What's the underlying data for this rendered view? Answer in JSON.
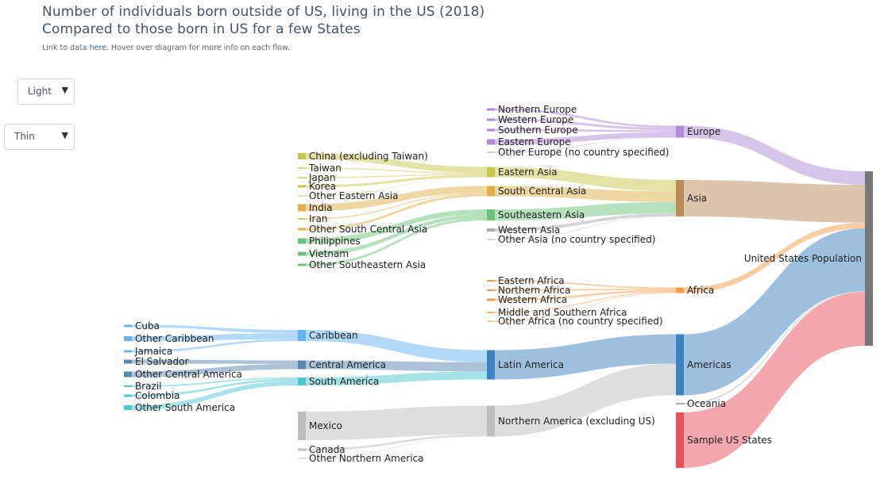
{
  "header": {
    "title_line1": "Number of individuals born outside of US, living in the US (2018)",
    "title_line2": "Compared to those born in US for a few States",
    "note_prefix": "Link to data ",
    "note_link": "here",
    "note_suffix": ". Hover over diagram for more info on each flow."
  },
  "controls": {
    "theme_select": {
      "value": "Light"
    },
    "width_select": {
      "value": "Thin"
    }
  },
  "colors": {
    "europe": "#b08ad6",
    "eastern_asia": "#c9c84e",
    "south_central_asia": "#e0b04a",
    "southeastern_asia": "#6cc47a",
    "western_asia": "#aaaaaa",
    "asia": "#b98c5a",
    "africa": "#f59b45",
    "caribbean": "#67b3f2",
    "central_america": "#5a86b2",
    "south_america": "#4bc8d2",
    "latin_america": "#3b82c0",
    "northern_america": "#bdbdbd",
    "us_states": "#e8505b",
    "us_population": "#777777"
  },
  "nodes": [
    {
      "id": "cuba",
      "label": "Cuba",
      "color": "#67b3f2"
    },
    {
      "id": "other_caribbean",
      "label": "Other Caribbean",
      "color": "#67b3f2"
    },
    {
      "id": "jamaica",
      "label": "Jamaica",
      "color": "#67b3f2"
    },
    {
      "id": "el_salvador",
      "label": "El Salvador",
      "color": "#5a86b2"
    },
    {
      "id": "other_central",
      "label": "Other Central America",
      "color": "#5a86b2"
    },
    {
      "id": "brazil",
      "label": "Brazil",
      "color": "#4bc8d2"
    },
    {
      "id": "colombia",
      "label": "Colombia",
      "color": "#4bc8d2"
    },
    {
      "id": "other_south",
      "label": "Other South America",
      "color": "#4bc8d2"
    },
    {
      "id": "china",
      "label": "China (excluding Taiwan)",
      "color": "#c9c84e"
    },
    {
      "id": "taiwan",
      "label": "Taiwan",
      "color": "#c9c84e"
    },
    {
      "id": "japan",
      "label": "Japan",
      "color": "#c9c84e"
    },
    {
      "id": "korea",
      "label": "Korea",
      "color": "#c9c84e"
    },
    {
      "id": "other_eastern_asia",
      "label": "Other Eastern Asia",
      "color": "#c9c84e"
    },
    {
      "id": "india",
      "label": "India",
      "color": "#e0b04a"
    },
    {
      "id": "iran",
      "label": "Iran",
      "color": "#e0b04a"
    },
    {
      "id": "other_sc_asia",
      "label": "Other South Central Asia",
      "color": "#e0b04a"
    },
    {
      "id": "philippines",
      "label": "Philippines",
      "color": "#6cc47a"
    },
    {
      "id": "vietnam",
      "label": "Vietnam",
      "color": "#6cc47a"
    },
    {
      "id": "other_se_asia",
      "label": "Other Southeastern Asia",
      "color": "#6cc47a"
    },
    {
      "id": "caribbean",
      "label": "Caribbean",
      "color": "#67b3f2"
    },
    {
      "id": "central_america",
      "label": "Central America",
      "color": "#5a86b2"
    },
    {
      "id": "south_america",
      "label": "South America",
      "color": "#4bc8d2"
    },
    {
      "id": "mexico",
      "label": "Mexico",
      "color": "#bdbdbd"
    },
    {
      "id": "canada",
      "label": "Canada",
      "color": "#bdbdbd"
    },
    {
      "id": "other_northern_america",
      "label": "Other Northern America",
      "color": "#bdbdbd"
    },
    {
      "id": "northern_europe",
      "label": "Northern Europe",
      "color": "#b08ad6"
    },
    {
      "id": "western_europe",
      "label": "Western Europe",
      "color": "#b08ad6"
    },
    {
      "id": "southern_europe",
      "label": "Southern Europe",
      "color": "#b08ad6"
    },
    {
      "id": "eastern_europe",
      "label": "Eastern Europe",
      "color": "#b08ad6"
    },
    {
      "id": "other_europe",
      "label": "Other Europe (no country specified)",
      "color": "#b08ad6"
    },
    {
      "id": "eastern_asia",
      "label": "Eastern Asia",
      "color": "#c9c84e"
    },
    {
      "id": "south_central_asia",
      "label": "South Central Asia",
      "color": "#e0b04a"
    },
    {
      "id": "southeastern_asia",
      "label": "Southeastern Asia",
      "color": "#6cc47a"
    },
    {
      "id": "western_asia",
      "label": "Western Asia",
      "color": "#aaaaaa"
    },
    {
      "id": "other_asia",
      "label": "Other Asia (no country specified)",
      "color": "#aaaaaa"
    },
    {
      "id": "eastern_africa",
      "label": "Eastern Africa",
      "color": "#f59b45"
    },
    {
      "id": "northern_africa",
      "label": "Northern Africa",
      "color": "#f59b45"
    },
    {
      "id": "western_africa",
      "label": "Western Africa",
      "color": "#f59b45"
    },
    {
      "id": "middle_southern_africa",
      "label": "Middle and Southern Africa",
      "color": "#f59b45"
    },
    {
      "id": "other_africa",
      "label": "Other Africa (no country specified)",
      "color": "#f59b45"
    },
    {
      "id": "latin_america",
      "label": "Latin America",
      "color": "#3b82c0"
    },
    {
      "id": "northern_america",
      "label": "Northern America (excluding US)",
      "color": "#bdbdbd"
    },
    {
      "id": "europe",
      "label": "Europe",
      "color": "#b08ad6"
    },
    {
      "id": "asia",
      "label": "Asia",
      "color": "#b98c5a"
    },
    {
      "id": "africa",
      "label": "Africa",
      "color": "#f59b45"
    },
    {
      "id": "americas",
      "label": "Americas",
      "color": "#3b82c0"
    },
    {
      "id": "oceania",
      "label": "Oceania",
      "color": "#aaaaaa"
    },
    {
      "id": "sample_us_states",
      "label": "Sample US States",
      "color": "#e8505b"
    },
    {
      "id": "us_population",
      "label": "United States Population",
      "color": "#777777"
    }
  ],
  "links": [
    {
      "source": "northern_europe",
      "target": "europe",
      "value": 0.9
    },
    {
      "source": "western_europe",
      "target": "europe",
      "value": 1.0
    },
    {
      "source": "southern_europe",
      "target": "europe",
      "value": 0.8
    },
    {
      "source": "eastern_europe",
      "target": "europe",
      "value": 2.2
    },
    {
      "source": "other_europe",
      "target": "europe",
      "value": 0.1
    },
    {
      "source": "china",
      "target": "eastern_asia",
      "value": 2.5
    },
    {
      "source": "taiwan",
      "target": "eastern_asia",
      "value": 0.4
    },
    {
      "source": "japan",
      "target": "eastern_asia",
      "value": 0.35
    },
    {
      "source": "korea",
      "target": "eastern_asia",
      "value": 1.0
    },
    {
      "source": "other_eastern_asia",
      "target": "eastern_asia",
      "value": 0.1
    },
    {
      "source": "india",
      "target": "south_central_asia",
      "value": 2.7
    },
    {
      "source": "iran",
      "target": "south_central_asia",
      "value": 0.4
    },
    {
      "source": "other_sc_asia",
      "target": "south_central_asia",
      "value": 1.0
    },
    {
      "source": "philippines",
      "target": "southeastern_asia",
      "value": 2.0
    },
    {
      "source": "vietnam",
      "target": "southeastern_asia",
      "value": 1.4
    },
    {
      "source": "other_se_asia",
      "target": "southeastern_asia",
      "value": 1.0
    },
    {
      "source": "eastern_asia",
      "target": "asia",
      "value": 4.35
    },
    {
      "source": "south_central_asia",
      "target": "asia",
      "value": 4.1
    },
    {
      "source": "southeastern_asia",
      "target": "asia",
      "value": 4.4
    },
    {
      "source": "western_asia",
      "target": "asia",
      "value": 1.1
    },
    {
      "source": "other_asia",
      "target": "asia",
      "value": 0.1
    },
    {
      "source": "eastern_africa",
      "target": "africa",
      "value": 0.5
    },
    {
      "source": "northern_africa",
      "target": "africa",
      "value": 0.45
    },
    {
      "source": "western_africa",
      "target": "africa",
      "value": 0.7
    },
    {
      "source": "middle_southern_africa",
      "target": "africa",
      "value": 0.35
    },
    {
      "source": "other_africa",
      "target": "africa",
      "value": 0.1
    },
    {
      "source": "cuba",
      "target": "caribbean",
      "value": 1.35
    },
    {
      "source": "other_caribbean",
      "target": "caribbean",
      "value": 2.5
    },
    {
      "source": "jamaica",
      "target": "caribbean",
      "value": 0.75
    },
    {
      "source": "el_salvador",
      "target": "central_america",
      "value": 1.4
    },
    {
      "source": "other_central",
      "target": "central_america",
      "value": 2.1
    },
    {
      "source": "brazil",
      "target": "south_america",
      "value": 0.5
    },
    {
      "source": "colombia",
      "target": "south_america",
      "value": 0.8
    },
    {
      "source": "other_south",
      "target": "south_america",
      "value": 1.8
    },
    {
      "source": "caribbean",
      "target": "latin_america",
      "value": 4.6
    },
    {
      "source": "central_america",
      "target": "latin_america",
      "value": 3.5
    },
    {
      "source": "south_america",
      "target": "latin_america",
      "value": 3.1
    },
    {
      "source": "mexico",
      "target": "northern_america",
      "value": 11.2
    },
    {
      "source": "canada",
      "target": "northern_america",
      "value": 0.8
    },
    {
      "source": "other_northern_america",
      "target": "northern_america",
      "value": 0.1
    },
    {
      "source": "latin_america",
      "target": "americas",
      "value": 11.2
    },
    {
      "source": "northern_america",
      "target": "americas",
      "value": 12.1
    },
    {
      "source": "europe",
      "target": "us_population",
      "value": 5.0
    },
    {
      "source": "asia",
      "target": "us_population",
      "value": 14.05
    },
    {
      "source": "africa",
      "target": "us_population",
      "value": 2.1
    },
    {
      "source": "americas",
      "target": "us_population",
      "value": 23.3
    },
    {
      "source": "oceania",
      "target": "us_population",
      "value": 0.3
    },
    {
      "source": "sample_us_states",
      "target": "us_population",
      "value": 20.0
    }
  ]
}
